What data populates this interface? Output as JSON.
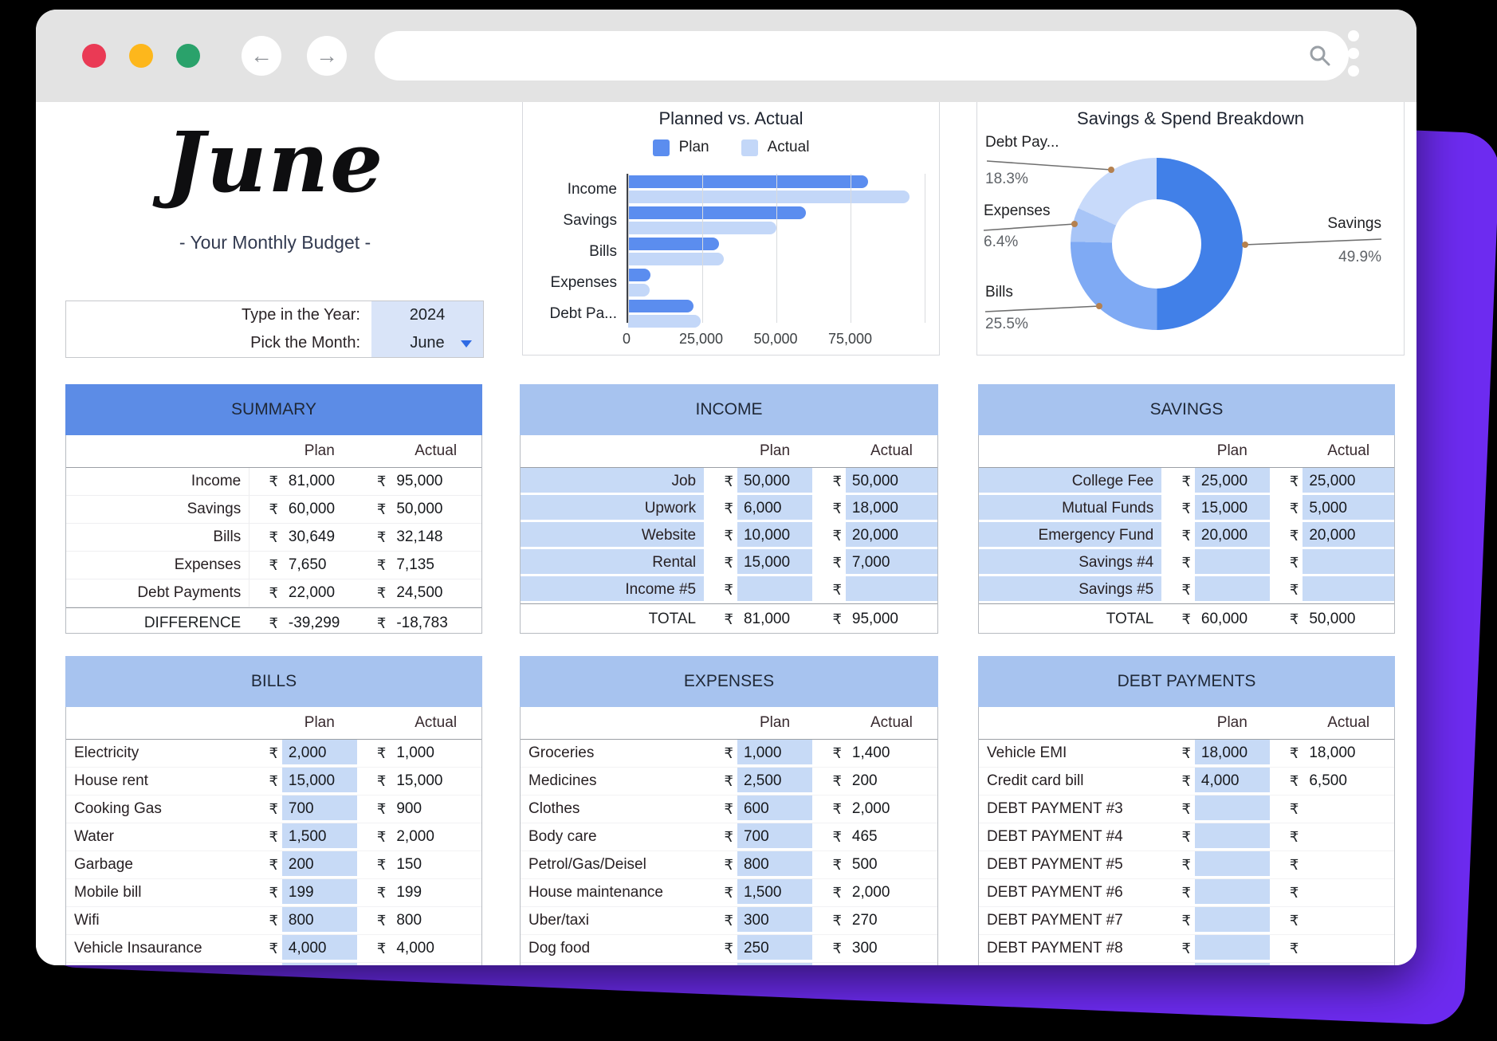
{
  "currency": "₹",
  "columns": {
    "plan": "Plan",
    "actual": "Actual"
  },
  "page": {
    "month_title": "June",
    "subtitle": "- Your Monthly Budget -",
    "year_label": "Type in the Year:",
    "year_value": "2024",
    "month_label": "Pick the Month:",
    "month_value": "June"
  },
  "chart_data": [
    {
      "type": "bar",
      "title": "Planned vs. Actual",
      "orientation": "horizontal",
      "categories": [
        "Income",
        "Savings",
        "Bills",
        "Expenses",
        "Debt Pa..."
      ],
      "series": [
        {
          "name": "Plan",
          "color": "#5b8def",
          "values": [
            81000,
            60000,
            30649,
            7650,
            22000
          ]
        },
        {
          "name": "Actual",
          "color": "#c3d7f8",
          "values": [
            95000,
            50000,
            32148,
            7135,
            24500
          ]
        }
      ],
      "xlim": [
        0,
        100000
      ],
      "xticks": [
        0,
        25000,
        50000,
        75000
      ],
      "tick_labels": [
        "0",
        "25,000",
        "50,000",
        "75,000"
      ],
      "grid": true,
      "legend_position": "top"
    },
    {
      "type": "pie",
      "subtype": "donut",
      "title": "Savings & Spend Breakdown",
      "slices": [
        {
          "label": "Savings",
          "pct": 49.9,
          "pct_label": "49.9%",
          "color": "#4180e8"
        },
        {
          "label": "Bills",
          "pct": 25.5,
          "pct_label": "25.5%",
          "color": "#7faaf4"
        },
        {
          "label": "Expenses",
          "pct": 6.4,
          "pct_label": "6.4%",
          "color": "#a8c5f7"
        },
        {
          "label": "Debt Pay...",
          "pct": 18.3,
          "pct_label": "18.3%",
          "color": "#c8dafa"
        }
      ]
    }
  ],
  "tables": {
    "summary": {
      "title": "SUMMARY",
      "rows": [
        {
          "label": "Income",
          "plan": "81,000",
          "actual": "95,000"
        },
        {
          "label": "Savings",
          "plan": "60,000",
          "actual": "50,000"
        },
        {
          "label": "Bills",
          "plan": "30,649",
          "actual": "32,148"
        },
        {
          "label": "Expenses",
          "plan": "7,650",
          "actual": "7,135"
        },
        {
          "label": "Debt Payments",
          "plan": "22,000",
          "actual": "24,500"
        }
      ],
      "footer": {
        "label": "DIFFERENCE",
        "plan": "-39,299",
        "actual": "-18,783"
      }
    },
    "income": {
      "title": "INCOME",
      "rows": [
        {
          "label": "Job",
          "plan": "50,000",
          "actual": "50,000"
        },
        {
          "label": "Upwork",
          "plan": "6,000",
          "actual": "18,000"
        },
        {
          "label": "Website",
          "plan": "10,000",
          "actual": "20,000"
        },
        {
          "label": "Rental",
          "plan": "15,000",
          "actual": "7,000"
        },
        {
          "label": "Income #5",
          "plan": "",
          "actual": ""
        }
      ],
      "footer": {
        "label": "TOTAL",
        "plan": "81,000",
        "actual": "95,000"
      }
    },
    "savings": {
      "title": "SAVINGS",
      "rows": [
        {
          "label": "College Fee",
          "plan": "25,000",
          "actual": "25,000"
        },
        {
          "label": "Mutual Funds",
          "plan": "15,000",
          "actual": "5,000"
        },
        {
          "label": "Emergency Fund",
          "plan": "20,000",
          "actual": "20,000"
        },
        {
          "label": "Savings #4",
          "plan": "",
          "actual": ""
        },
        {
          "label": "Savings #5",
          "plan": "",
          "actual": ""
        }
      ],
      "footer": {
        "label": "TOTAL",
        "plan": "60,000",
        "actual": "50,000"
      }
    },
    "bills": {
      "title": "BILLS",
      "rows": [
        {
          "label": "Electricity",
          "plan": "2,000",
          "actual": "1,000"
        },
        {
          "label": "House rent",
          "plan": "15,000",
          "actual": "15,000"
        },
        {
          "label": "Cooking Gas",
          "plan": "700",
          "actual": "900"
        },
        {
          "label": "Water",
          "plan": "1,500",
          "actual": "2,000"
        },
        {
          "label": "Garbage",
          "plan": "200",
          "actual": "150"
        },
        {
          "label": "Mobile bill",
          "plan": "199",
          "actual": "199"
        },
        {
          "label": "Wifi",
          "plan": "800",
          "actual": "800"
        },
        {
          "label": "Vehicle Insaurance",
          "plan": "4,000",
          "actual": "4,000"
        }
      ]
    },
    "expenses": {
      "title": "EXPENSES",
      "rows": [
        {
          "label": "Groceries",
          "plan": "1,000",
          "actual": "1,400"
        },
        {
          "label": "Medicines",
          "plan": "2,500",
          "actual": "200"
        },
        {
          "label": "Clothes",
          "plan": "600",
          "actual": "2,000"
        },
        {
          "label": "Body care",
          "plan": "700",
          "actual": "465"
        },
        {
          "label": "Petrol/Gas/Deisel",
          "plan": "800",
          "actual": "500"
        },
        {
          "label": "House maintenance",
          "plan": "1,500",
          "actual": "2,000"
        },
        {
          "label": "Uber/taxi",
          "plan": "300",
          "actual": "270"
        },
        {
          "label": "Dog food",
          "plan": "250",
          "actual": "300"
        }
      ]
    },
    "debt": {
      "title": "DEBT PAYMENTS",
      "rows": [
        {
          "label": "Vehicle EMI",
          "plan": "18,000",
          "actual": "18,000"
        },
        {
          "label": "Credit card bill",
          "plan": "4,000",
          "actual": "6,500"
        },
        {
          "label": "DEBT PAYMENT #3",
          "plan": "",
          "actual": ""
        },
        {
          "label": "DEBT PAYMENT #4",
          "plan": "",
          "actual": ""
        },
        {
          "label": "DEBT PAYMENT #5",
          "plan": "",
          "actual": ""
        },
        {
          "label": "DEBT PAYMENT #6",
          "plan": "",
          "actual": ""
        },
        {
          "label": "DEBT PAYMENT #7",
          "plan": "",
          "actual": ""
        },
        {
          "label": "DEBT PAYMENT #8",
          "plan": "",
          "actual": ""
        }
      ]
    }
  },
  "colors": {
    "accent_header_dark": "#5c8ce6",
    "accent_header_light": "#a7c3ef",
    "cell_blue": "#c7daf6",
    "backdrop_purple": "#6d2bf0",
    "traffic_red": "#ea3a55",
    "traffic_yellow": "#fdb71c",
    "traffic_green": "#2aa26b"
  }
}
